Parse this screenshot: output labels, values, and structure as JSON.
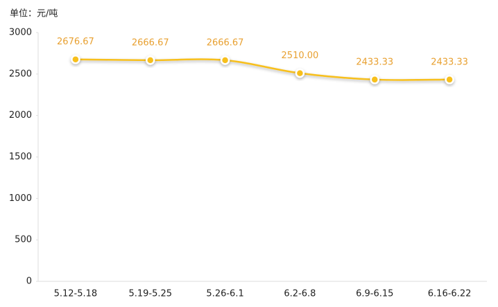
{
  "chart_data": {
    "type": "line",
    "unit_label": "单位：元/吨",
    "categories": [
      "5.12-5.18",
      "5.19-5.25",
      "5.26-6.1",
      "6.2-6.8",
      "6.9-6.15",
      "6.16-6.22"
    ],
    "values": [
      2676.67,
      2666.67,
      2666.67,
      2510.0,
      2433.33,
      2433.33
    ],
    "value_labels": [
      "2676.67",
      "2666.67",
      "2666.67",
      "2510.00",
      "2433.33",
      "2433.33"
    ],
    "color": "#f7bf1a",
    "ylim": [
      0,
      3000
    ],
    "yticks": [
      0,
      500,
      1000,
      1500,
      2000,
      2500,
      3000
    ],
    "smooth": true,
    "grid": false
  }
}
